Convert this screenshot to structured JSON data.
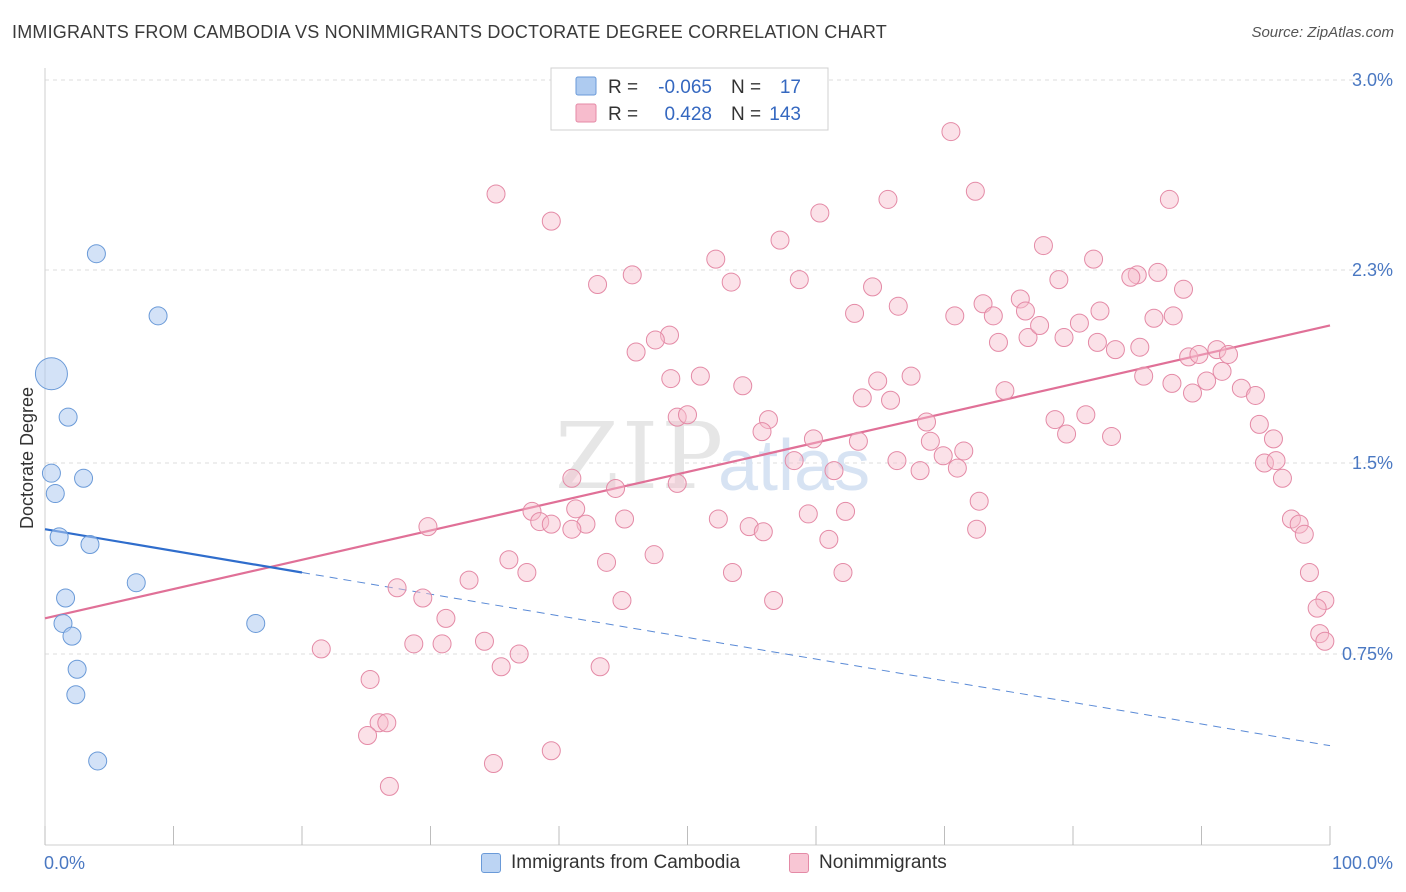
{
  "title": "IMMIGRANTS FROM CAMBODIA VS NONIMMIGRANTS DOCTORATE DEGREE CORRELATION CHART",
  "source": "Source: ZipAtlas.com",
  "watermark": {
    "zip": "ZIP",
    "atlas": "atlas"
  },
  "legend": {
    "rows": [
      {
        "r_label": "R =",
        "r_value": "-0.065",
        "n_label": "N =",
        "n_value": "17",
        "color": "#aecbf0",
        "stroke": "#6a9ad8"
      },
      {
        "r_label": "R =",
        "r_value": "0.428",
        "n_label": "N =",
        "n_value": "143",
        "color": "#f7bccd",
        "stroke": "#e48aa6"
      }
    ]
  },
  "bottom_legend": [
    {
      "label": "Immigrants from Cambodia",
      "color": "#bcd4f3",
      "stroke": "#6a9ad8"
    },
    {
      "label": "Nonimmigrants",
      "color": "#f8c6d4",
      "stroke": "#e48aa6"
    }
  ],
  "chart_data": {
    "type": "scatter",
    "title": "IMMIGRANTS FROM CAMBODIA VS NONIMMIGRANTS DOCTORATE DEGREE CORRELATION CHART",
    "xlabel": "",
    "ylabel": "Doctorate Degree",
    "xlim": [
      0,
      100
    ],
    "ylim": [
      0,
      3.0
    ],
    "x_tick_labels": [
      "0.0%",
      "100.0%"
    ],
    "y_ticks": [
      0.75,
      1.5,
      2.3,
      3.0
    ],
    "y_tick_labels": [
      "0.75%",
      "1.5%",
      "2.3%",
      "3.0%"
    ],
    "grid": true,
    "legend_position": "top-center",
    "series": [
      {
        "name": "Immigrants from Cambodia",
        "color": "#aecbf0",
        "stroke": "#6a9ad8",
        "r": -0.065,
        "n": 17,
        "trend": {
          "x0": 0,
          "y0": 1.24,
          "x1": 20,
          "y1": 1.07,
          "dashed_to_x": 100,
          "dashed_to_y": 0.39
        },
        "points": [
          {
            "x": 0.5,
            "y": 1.87,
            "size": "large"
          },
          {
            "x": 4.0,
            "y": 2.36
          },
          {
            "x": 8.8,
            "y": 2.11
          },
          {
            "x": 1.8,
            "y": 1.69
          },
          {
            "x": 0.5,
            "y": 1.46
          },
          {
            "x": 0.8,
            "y": 1.38
          },
          {
            "x": 3.0,
            "y": 1.44
          },
          {
            "x": 1.1,
            "y": 1.21
          },
          {
            "x": 3.5,
            "y": 1.18
          },
          {
            "x": 7.1,
            "y": 1.03
          },
          {
            "x": 1.6,
            "y": 0.97
          },
          {
            "x": 1.4,
            "y": 0.87
          },
          {
            "x": 2.1,
            "y": 0.82
          },
          {
            "x": 16.4,
            "y": 0.87
          },
          {
            "x": 2.5,
            "y": 0.69
          },
          {
            "x": 2.4,
            "y": 0.59
          },
          {
            "x": 4.1,
            "y": 0.33
          }
        ]
      },
      {
        "name": "Nonimmigrants",
        "color": "#f7bccd",
        "stroke": "#e48aa6",
        "r": 0.428,
        "n": 143,
        "trend": {
          "x0": 0,
          "y0": 0.89,
          "x1": 100,
          "y1": 2.07
        },
        "points": [
          {
            "x": 70.5,
            "y": 2.81
          },
          {
            "x": 35.1,
            "y": 2.58
          },
          {
            "x": 72.4,
            "y": 2.59
          },
          {
            "x": 87.5,
            "y": 2.56
          },
          {
            "x": 39.4,
            "y": 2.48
          },
          {
            "x": 60.3,
            "y": 2.51
          },
          {
            "x": 65.6,
            "y": 2.56
          },
          {
            "x": 57.2,
            "y": 2.41
          },
          {
            "x": 52.2,
            "y": 2.34
          },
          {
            "x": 77.7,
            "y": 2.39
          },
          {
            "x": 81.6,
            "y": 2.34
          },
          {
            "x": 85.0,
            "y": 2.28
          },
          {
            "x": 86.6,
            "y": 2.29
          },
          {
            "x": 43.0,
            "y": 2.24
          },
          {
            "x": 45.7,
            "y": 2.28
          },
          {
            "x": 53.4,
            "y": 2.25
          },
          {
            "x": 58.7,
            "y": 2.26
          },
          {
            "x": 64.4,
            "y": 2.23
          },
          {
            "x": 78.9,
            "y": 2.26
          },
          {
            "x": 84.5,
            "y": 2.27
          },
          {
            "x": 88.6,
            "y": 2.22
          },
          {
            "x": 66.4,
            "y": 2.15
          },
          {
            "x": 63.0,
            "y": 2.12
          },
          {
            "x": 70.8,
            "y": 2.11
          },
          {
            "x": 73.0,
            "y": 2.16
          },
          {
            "x": 73.8,
            "y": 2.11
          },
          {
            "x": 75.9,
            "y": 2.18
          },
          {
            "x": 76.3,
            "y": 2.13
          },
          {
            "x": 82.1,
            "y": 2.13
          },
          {
            "x": 86.3,
            "y": 2.1
          },
          {
            "x": 87.8,
            "y": 2.11
          },
          {
            "x": 48.6,
            "y": 2.03
          },
          {
            "x": 47.5,
            "y": 2.01
          },
          {
            "x": 46.0,
            "y": 1.96
          },
          {
            "x": 74.2,
            "y": 2.0
          },
          {
            "x": 76.5,
            "y": 2.02
          },
          {
            "x": 77.4,
            "y": 2.07
          },
          {
            "x": 79.3,
            "y": 2.02
          },
          {
            "x": 80.5,
            "y": 2.08
          },
          {
            "x": 81.9,
            "y": 2.0
          },
          {
            "x": 83.3,
            "y": 1.97
          },
          {
            "x": 85.2,
            "y": 1.98
          },
          {
            "x": 89.0,
            "y": 1.94
          },
          {
            "x": 89.8,
            "y": 1.95
          },
          {
            "x": 91.2,
            "y": 1.97
          },
          {
            "x": 92.1,
            "y": 1.95
          },
          {
            "x": 48.7,
            "y": 1.85
          },
          {
            "x": 51.0,
            "y": 1.86
          },
          {
            "x": 54.3,
            "y": 1.82
          },
          {
            "x": 64.8,
            "y": 1.84
          },
          {
            "x": 67.4,
            "y": 1.86
          },
          {
            "x": 85.5,
            "y": 1.86
          },
          {
            "x": 87.7,
            "y": 1.83
          },
          {
            "x": 90.4,
            "y": 1.84
          },
          {
            "x": 91.6,
            "y": 1.88
          },
          {
            "x": 93.1,
            "y": 1.81
          },
          {
            "x": 94.2,
            "y": 1.78
          },
          {
            "x": 63.6,
            "y": 1.77
          },
          {
            "x": 65.8,
            "y": 1.76
          },
          {
            "x": 74.7,
            "y": 1.8
          },
          {
            "x": 89.3,
            "y": 1.79
          },
          {
            "x": 49.2,
            "y": 1.69
          },
          {
            "x": 50.0,
            "y": 1.7
          },
          {
            "x": 56.3,
            "y": 1.68
          },
          {
            "x": 68.6,
            "y": 1.67
          },
          {
            "x": 78.6,
            "y": 1.68
          },
          {
            "x": 81.0,
            "y": 1.7
          },
          {
            "x": 94.5,
            "y": 1.66
          },
          {
            "x": 55.8,
            "y": 1.63
          },
          {
            "x": 59.8,
            "y": 1.6
          },
          {
            "x": 63.3,
            "y": 1.59
          },
          {
            "x": 68.9,
            "y": 1.59
          },
          {
            "x": 79.5,
            "y": 1.62
          },
          {
            "x": 83.0,
            "y": 1.61
          },
          {
            "x": 95.6,
            "y": 1.6
          },
          {
            "x": 69.9,
            "y": 1.53
          },
          {
            "x": 71.5,
            "y": 1.55
          },
          {
            "x": 58.3,
            "y": 1.51
          },
          {
            "x": 66.3,
            "y": 1.51
          },
          {
            "x": 94.9,
            "y": 1.5
          },
          {
            "x": 95.8,
            "y": 1.51
          },
          {
            "x": 61.4,
            "y": 1.47
          },
          {
            "x": 68.1,
            "y": 1.47
          },
          {
            "x": 71.0,
            "y": 1.48
          },
          {
            "x": 41.0,
            "y": 1.44
          },
          {
            "x": 49.2,
            "y": 1.42
          },
          {
            "x": 44.4,
            "y": 1.4
          },
          {
            "x": 96.3,
            "y": 1.44
          },
          {
            "x": 72.7,
            "y": 1.35
          },
          {
            "x": 37.9,
            "y": 1.31
          },
          {
            "x": 41.3,
            "y": 1.32
          },
          {
            "x": 59.4,
            "y": 1.3
          },
          {
            "x": 62.3,
            "y": 1.31
          },
          {
            "x": 97.0,
            "y": 1.28
          },
          {
            "x": 97.6,
            "y": 1.26
          },
          {
            "x": 38.5,
            "y": 1.27
          },
          {
            "x": 39.4,
            "y": 1.26
          },
          {
            "x": 42.1,
            "y": 1.26
          },
          {
            "x": 45.1,
            "y": 1.28
          },
          {
            "x": 52.4,
            "y": 1.28
          },
          {
            "x": 54.8,
            "y": 1.25
          },
          {
            "x": 55.9,
            "y": 1.23
          },
          {
            "x": 72.5,
            "y": 1.24
          },
          {
            "x": 29.8,
            "y": 1.25
          },
          {
            "x": 41.0,
            "y": 1.24
          },
          {
            "x": 98.0,
            "y": 1.22
          },
          {
            "x": 61.0,
            "y": 1.2
          },
          {
            "x": 47.4,
            "y": 1.14
          },
          {
            "x": 36.1,
            "y": 1.12
          },
          {
            "x": 43.7,
            "y": 1.11
          },
          {
            "x": 53.5,
            "y": 1.07
          },
          {
            "x": 62.1,
            "y": 1.07
          },
          {
            "x": 37.5,
            "y": 1.07
          },
          {
            "x": 98.4,
            "y": 1.07
          },
          {
            "x": 33.0,
            "y": 1.04
          },
          {
            "x": 27.4,
            "y": 1.01
          },
          {
            "x": 29.4,
            "y": 0.97
          },
          {
            "x": 44.9,
            "y": 0.96
          },
          {
            "x": 56.7,
            "y": 0.96
          },
          {
            "x": 99.6,
            "y": 0.96
          },
          {
            "x": 99.0,
            "y": 0.93
          },
          {
            "x": 31.2,
            "y": 0.89
          },
          {
            "x": 99.2,
            "y": 0.83
          },
          {
            "x": 99.6,
            "y": 0.8
          },
          {
            "x": 28.7,
            "y": 0.79
          },
          {
            "x": 30.9,
            "y": 0.79
          },
          {
            "x": 34.2,
            "y": 0.8
          },
          {
            "x": 21.5,
            "y": 0.77
          },
          {
            "x": 36.9,
            "y": 0.75
          },
          {
            "x": 35.5,
            "y": 0.7
          },
          {
            "x": 43.2,
            "y": 0.7
          },
          {
            "x": 25.3,
            "y": 0.65
          },
          {
            "x": 26.0,
            "y": 0.48
          },
          {
            "x": 26.6,
            "y": 0.48
          },
          {
            "x": 25.1,
            "y": 0.43
          },
          {
            "x": 39.4,
            "y": 0.37
          },
          {
            "x": 34.9,
            "y": 0.32
          },
          {
            "x": 26.8,
            "y": 0.23
          }
        ]
      }
    ]
  }
}
